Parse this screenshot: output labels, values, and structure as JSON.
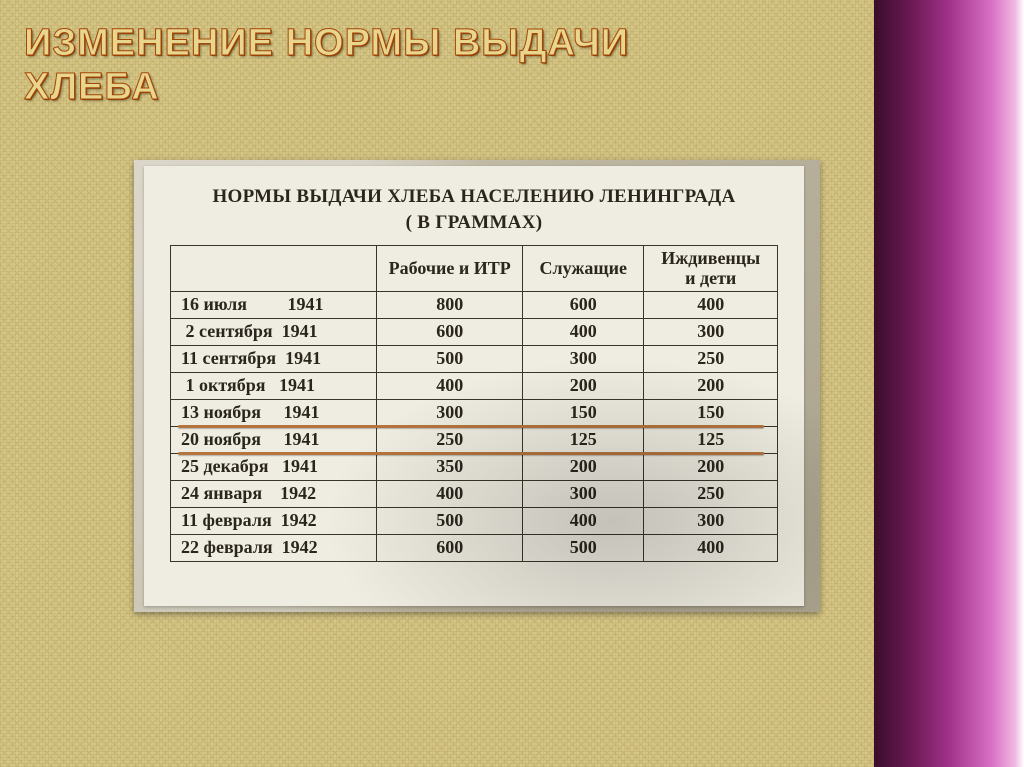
{
  "slide": {
    "title_line1": "Изменение нормы выдачи",
    "title_line2": "хлеба"
  },
  "table": {
    "title_line1": "НОРМЫ ВЫДАЧИ ХЛЕБА НАСЕЛЕНИЮ ЛЕНИНГРАДА",
    "title_line2": "( В ГРАММАХ)",
    "columns": {
      "date": "",
      "workers": "Рабочие и  ИТР",
      "employees": "Служащие",
      "dependents_line1": "Иждивенцы",
      "dependents_line2": "и  дети"
    },
    "rows": [
      {
        "date": "16 июля         1941",
        "a": "800",
        "b": "600",
        "c": "400"
      },
      {
        "date": " 2 сентября  1941",
        "a": "600",
        "b": "400",
        "c": "300"
      },
      {
        "date": "11 сентября  1941",
        "a": "500",
        "b": "300",
        "c": "250"
      },
      {
        "date": " 1 октября   1941",
        "a": "400",
        "b": "200",
        "c": "200"
      },
      {
        "date": "13 ноября     1941",
        "a": "300",
        "b": "150",
        "c": "150"
      },
      {
        "date": "20 ноября     1941",
        "a": "250",
        "b": "125",
        "c": "125"
      },
      {
        "date": "25 декабря   1941",
        "a": "350",
        "b": "200",
        "c": "200"
      },
      {
        "date": "24 января    1942",
        "a": "400",
        "b": "300",
        "c": "250"
      },
      {
        "date": "11 февраля  1942",
        "a": "500",
        "b": "400",
        "c": "300"
      },
      {
        "date": "22 февраля  1942",
        "a": "600",
        "b": "500",
        "c": "400"
      }
    ],
    "highlight_between_rows": [
      5,
      6
    ],
    "colors": {
      "paper_bg": "#efece1",
      "border": "#3a352a",
      "text": "#2a261d",
      "highlight_line": "#b5743c"
    },
    "font": {
      "family": "Times New Roman",
      "title_size_pt": 14,
      "cell_size_pt": 13,
      "weight": "bold"
    }
  },
  "theme": {
    "burlap_bg": "#d8c98a",
    "gradient_stops": [
      "#3a0c2c",
      "#6b1a54",
      "#a03289",
      "#d86fc4",
      "#f0b8e3",
      "#ffffff"
    ],
    "title_fill": "#e8d58e",
    "title_stroke": "#a54708"
  }
}
